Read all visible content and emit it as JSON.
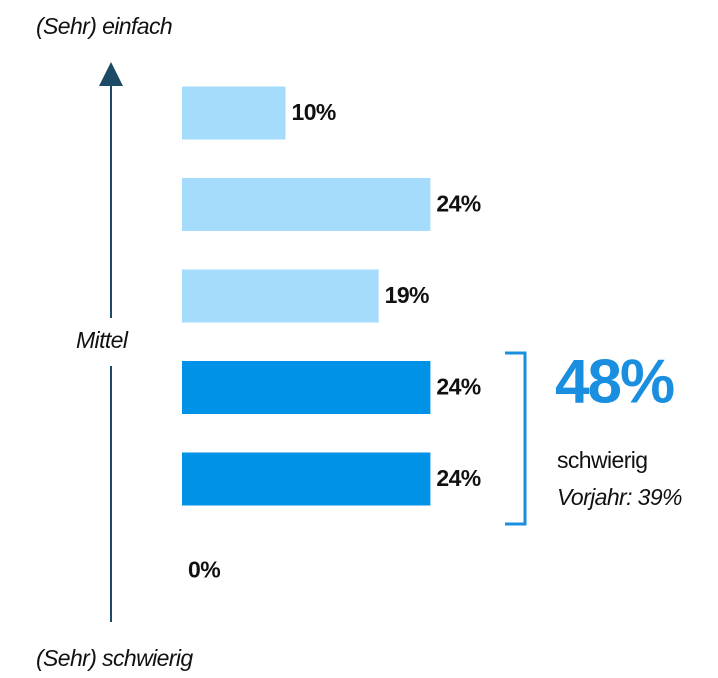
{
  "chart_data": {
    "type": "bar",
    "orientation": "horizontal",
    "categories": [
      null,
      null,
      null,
      null,
      null,
      null
    ],
    "values": [
      10,
      24,
      19,
      24,
      24,
      0
    ],
    "value_labels": [
      "10%",
      "24%",
      "19%",
      "24%",
      "24%",
      "0%"
    ],
    "colors": [
      "#a6dcfb",
      "#a6dcfb",
      "#a6dcfb",
      "#0092e6",
      "#0092e6",
      "#0092e6"
    ],
    "axis_top_label": "(Sehr) einfach",
    "axis_middle_label": "Mittel",
    "axis_bottom_label": "(Sehr) schwierig",
    "summary": {
      "value": 48,
      "value_label": "48%",
      "label": "schwierig",
      "previous": "Vorjahr: 39%",
      "color": "#1a8fe0"
    }
  }
}
